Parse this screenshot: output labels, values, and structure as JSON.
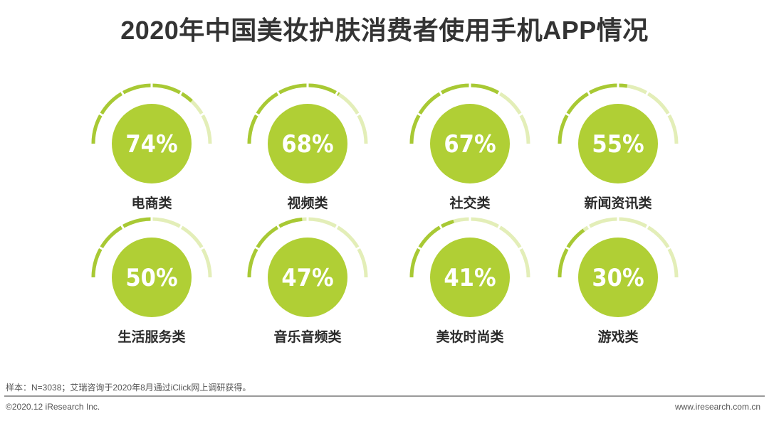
{
  "title": "2020年中国美妆护肤消费者使用手机APP情况",
  "chart_data": {
    "type": "gauge",
    "unit": "%",
    "categories": [
      "电商类",
      "视频类",
      "社交类",
      "新闻资讯类",
      "生活服务类",
      "音乐音频类",
      "美妆时尚类",
      "游戏类"
    ],
    "values": [
      74,
      68,
      67,
      55,
      50,
      47,
      41,
      30
    ],
    "labels_display": [
      "74%",
      "68%",
      "67%",
      "55%",
      "50%",
      "47%",
      "41%",
      "30%"
    ],
    "colors": {
      "fill": "#a8c934",
      "track": "#e3eeb8",
      "circle": "#b0cf35"
    }
  },
  "footer": {
    "note": "样本：N=3038；艾瑞咨询于2020年8月通过iClick网上调研获得。",
    "copyright": "©2020.12 iResearch Inc.",
    "website": "www.iresearch.com.cn"
  }
}
